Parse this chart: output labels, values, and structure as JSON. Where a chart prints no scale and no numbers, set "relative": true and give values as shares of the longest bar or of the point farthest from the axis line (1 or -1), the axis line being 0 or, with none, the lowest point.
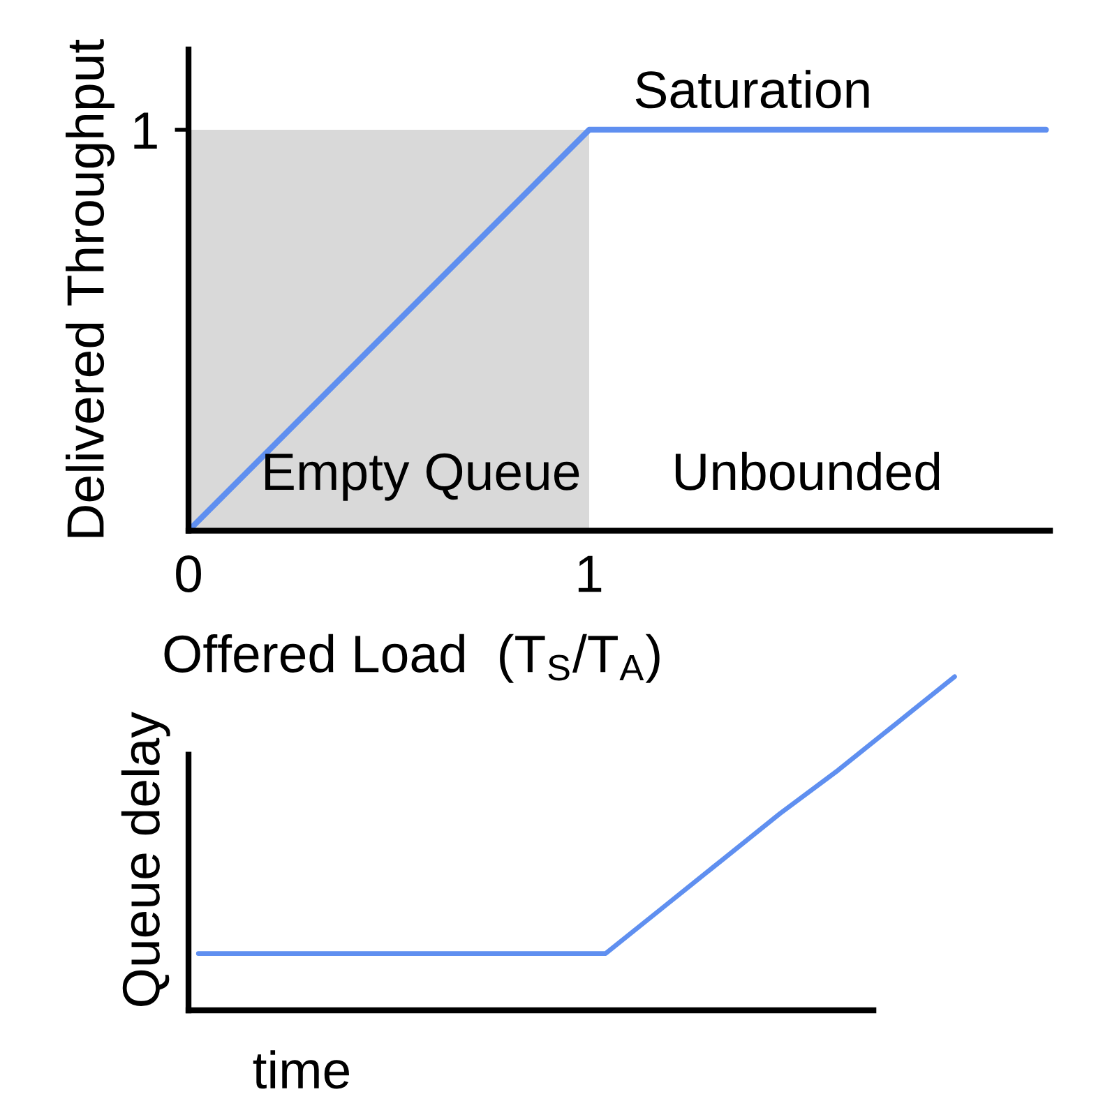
{
  "chart_data": [
    {
      "type": "line",
      "xlabel": "Offered Load  (T$_{S}$/T$_{A}$)",
      "ylabel": "Delivered Throughput",
      "xlim": [
        0,
        2.15
      ],
      "ylim": [
        0,
        1.2
      ],
      "xticks": [
        0,
        1
      ],
      "yticks": [
        1
      ],
      "grid": false,
      "series": [
        {
          "type": "area",
          "color": "#d9d9d9",
          "x": [
            0,
            1
          ],
          "values": [
            1,
            1
          ]
        },
        {
          "type": "line",
          "color": "#5f8ff0",
          "x": [
            0,
            1,
            2.14
          ],
          "values": [
            0,
            1,
            1
          ]
        }
      ],
      "annotations": [
        "Saturation",
        "Empty Queue",
        "Unbounded"
      ]
    },
    {
      "type": "line",
      "relative": true,
      "xlabel": "time",
      "ylabel": "Queue delay",
      "grid": false,
      "categories": [
        null,
        null,
        null,
        null,
        null,
        null,
        null,
        null,
        null,
        null,
        null,
        null,
        null,
        null
      ],
      "series": [
        {
          "color": "#5f8ff0",
          "values": [
            0.17,
            0.17,
            0.17,
            0.17,
            0.17,
            0.17,
            0.17,
            0.17,
            0.31,
            0.45,
            0.59,
            0.72,
            0.86,
            1
          ]
        }
      ]
    }
  ]
}
